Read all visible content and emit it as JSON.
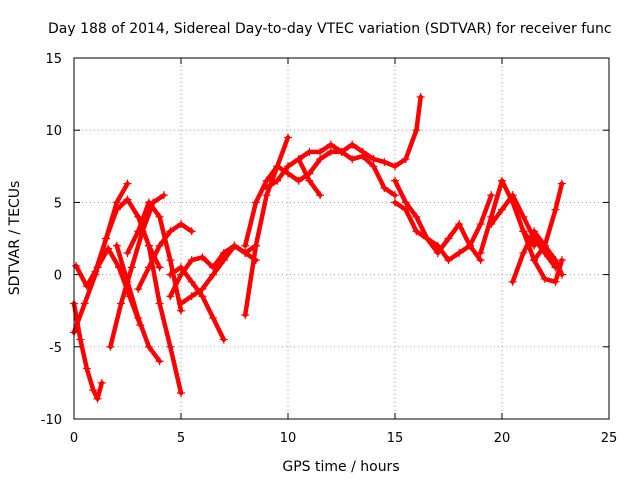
{
  "chart_data": {
    "type": "scatter",
    "title": "Day 188 of 2014, Sidereal Day-to-day VTEC variation (SDTVAR) for receiver func",
    "xlabel": "GPS time / hours",
    "ylabel": "SDTVAR / TECUs",
    "xlim": [
      0,
      25
    ],
    "ylim": [
      -10,
      15
    ],
    "x_ticks": [
      "0",
      "5",
      "10",
      "15",
      "20",
      "25"
    ],
    "y_ticks": [
      "-10",
      "-5",
      "0",
      "5",
      "10",
      "15"
    ],
    "grid": true,
    "marker": "+",
    "color": "#ff0000",
    "series": [
      {
        "name": "track-1",
        "x": [
          0.0,
          0.3,
          0.6,
          0.9,
          1.1,
          1.3
        ],
        "y": [
          -2.0,
          -4.5,
          -6.5,
          -8.0,
          -8.6,
          -7.5
        ]
      },
      {
        "name": "track-2",
        "x": [
          0.0,
          0.5,
          1.0,
          1.5,
          2.0,
          2.5
        ],
        "y": [
          -4.0,
          -2.0,
          0.0,
          2.5,
          5.0,
          6.3
        ]
      },
      {
        "name": "track-3",
        "x": [
          0.1,
          0.6,
          1.1,
          1.6,
          2.1,
          2.6,
          3.1
        ],
        "y": [
          0.6,
          -0.8,
          0.5,
          1.8,
          0.5,
          -1.5,
          -3.5
        ]
      },
      {
        "name": "track-4",
        "x": [
          1.0,
          1.5,
          2.0,
          2.5,
          3.0,
          3.5,
          4.0
        ],
        "y": [
          0.2,
          2.5,
          4.5,
          5.2,
          4.0,
          2.0,
          0.5
        ]
      },
      {
        "name": "track-5",
        "x": [
          1.7,
          2.2,
          2.7,
          3.2,
          3.7,
          4.2
        ],
        "y": [
          -5.0,
          -2.0,
          0.5,
          3.0,
          5.0,
          5.5
        ]
      },
      {
        "name": "track-6",
        "x": [
          2.0,
          2.5,
          3.0,
          3.5,
          4.0
        ],
        "y": [
          2.0,
          -0.5,
          -3.0,
          -5.0,
          -6.0
        ]
      },
      {
        "name": "track-7",
        "x": [
          2.5,
          3.0,
          3.5,
          4.0,
          4.5,
          5.0
        ],
        "y": [
          1.5,
          3.0,
          5.0,
          4.0,
          1.0,
          -2.5
        ]
      },
      {
        "name": "track-8",
        "x": [
          3.5,
          4.0,
          4.5,
          5.0
        ],
        "y": [
          2.0,
          -2.0,
          -5.0,
          -8.2
        ]
      },
      {
        "name": "track-9",
        "x": [
          3.0,
          3.5,
          4.0,
          4.5,
          5.0,
          5.5
        ],
        "y": [
          -1.0,
          0.5,
          2.0,
          3.0,
          3.5,
          3.0
        ]
      },
      {
        "name": "track-10",
        "x": [
          4.5,
          5.0,
          5.5,
          6.0,
          6.5,
          7.0,
          7.5,
          8.0,
          8.5
        ],
        "y": [
          -1.5,
          0.0,
          1.0,
          1.2,
          0.5,
          1.5,
          2.0,
          1.5,
          1.0
        ]
      },
      {
        "name": "track-11",
        "x": [
          4.5,
          5.0,
          5.5,
          6.0,
          6.5,
          7.0
        ],
        "y": [
          0.0,
          0.5,
          -0.5,
          -1.5,
          -3.0,
          -4.5
        ]
      },
      {
        "name": "track-12",
        "x": [
          5.0,
          5.5,
          6.0,
          6.5,
          7.0,
          7.5,
          8.0,
          8.5
        ],
        "y": [
          -2.0,
          -1.5,
          -1.0,
          0.0,
          1.0,
          2.0,
          1.5,
          2.0
        ]
      },
      {
        "name": "track-13",
        "x": [
          8.0,
          8.5,
          9.0,
          9.5,
          10.0,
          10.5,
          11.0
        ],
        "y": [
          2.0,
          5.0,
          6.5,
          7.5,
          7.0,
          6.5,
          7.0
        ]
      },
      {
        "name": "track-14",
        "x": [
          8.0,
          8.5,
          9.0,
          9.5,
          10.0
        ],
        "y": [
          -2.8,
          2.0,
          5.5,
          7.5,
          9.5
        ]
      },
      {
        "name": "track-15",
        "x": [
          9.0,
          9.5,
          10.0,
          10.5,
          11.0,
          11.5
        ],
        "y": [
          6.0,
          6.5,
          7.5,
          8.0,
          6.5,
          5.5
        ]
      },
      {
        "name": "track-16",
        "x": [
          10.5,
          11.0,
          11.5,
          12.0,
          12.5,
          13.0,
          13.5,
          14.0
        ],
        "y": [
          8.0,
          8.5,
          8.5,
          9.0,
          8.5,
          9.0,
          8.5,
          8.0
        ]
      },
      {
        "name": "track-17",
        "x": [
          11.0,
          11.5,
          12.0,
          12.5,
          13.0,
          13.5,
          14.0,
          14.5,
          15.0
        ],
        "y": [
          7.0,
          8.0,
          8.5,
          8.5,
          8.0,
          8.2,
          7.5,
          6.0,
          5.5
        ]
      },
      {
        "name": "track-18",
        "x": [
          14.0,
          14.5,
          15.0,
          15.5,
          16.0,
          16.2
        ],
        "y": [
          8.0,
          7.8,
          7.5,
          8.0,
          10.0,
          12.3
        ]
      },
      {
        "name": "track-19",
        "x": [
          15.0,
          15.5,
          16.0,
          16.5,
          17.0,
          17.5,
          18.0,
          18.5,
          19.0
        ],
        "y": [
          6.5,
          5.0,
          4.0,
          2.5,
          1.5,
          2.5,
          3.5,
          2.0,
          1.0
        ]
      },
      {
        "name": "track-20",
        "x": [
          15.0,
          15.5,
          16.0,
          16.5,
          17.0,
          17.5,
          18.0,
          18.5,
          19.0,
          19.5
        ],
        "y": [
          5.0,
          4.5,
          3.0,
          2.5,
          2.0,
          1.0,
          1.5,
          2.0,
          3.5,
          5.5
        ]
      },
      {
        "name": "track-21",
        "x": [
          19.0,
          19.5,
          20.0,
          20.5,
          21.0,
          21.5
        ],
        "y": [
          1.5,
          4.0,
          6.5,
          5.0,
          3.0,
          2.0
        ]
      },
      {
        "name": "track-22",
        "x": [
          19.5,
          20.0,
          20.5,
          21.0,
          21.5,
          22.0,
          22.5
        ],
        "y": [
          3.5,
          4.5,
          5.5,
          4.0,
          2.5,
          1.5,
          0.5
        ]
      },
      {
        "name": "track-23",
        "x": [
          20.5,
          21.0,
          21.5,
          22.0,
          22.5,
          22.8
        ],
        "y": [
          -0.5,
          1.5,
          3.0,
          2.0,
          1.0,
          0.0
        ]
      },
      {
        "name": "track-24",
        "x": [
          21.5,
          22.0,
          22.5,
          22.8
        ],
        "y": [
          1.0,
          2.0,
          4.5,
          6.3
        ]
      },
      {
        "name": "track-25",
        "x": [
          21.0,
          21.5,
          22.0,
          22.5,
          22.8
        ],
        "y": [
          3.0,
          1.0,
          -0.3,
          -0.5,
          1.0
        ]
      }
    ]
  }
}
